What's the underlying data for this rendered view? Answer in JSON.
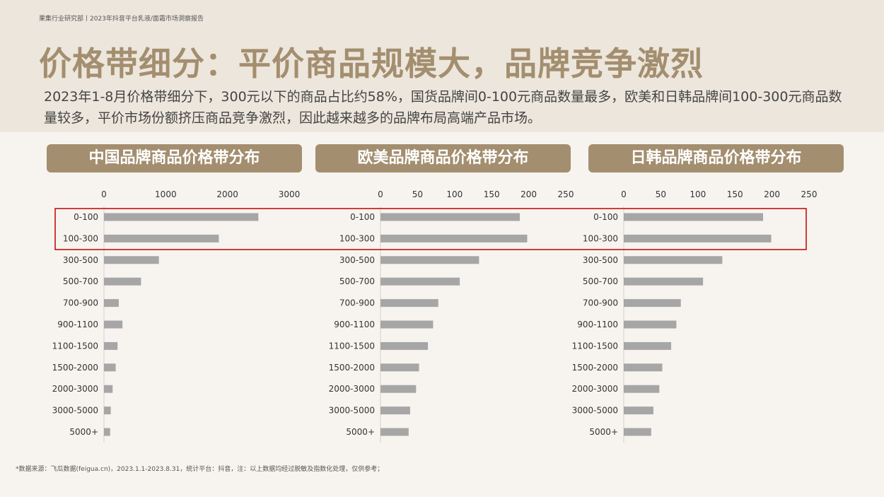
{
  "header": {
    "caption": "果集行业研究部丨2023年抖音平台乳液/面霜市场洞察报告",
    "title": "价格带细分：平价商品规模大，品牌竞争激烈",
    "subtitle": "2023年1-8月价格带细分下，300元以下的商品占比约58%，国货品牌间0-100元商品数量最多，欧美和日韩品牌间100-300元商品数量较多，平价市场份额挤压商品竞争激烈，因此越来越多的品牌布局高端产品市场。"
  },
  "colors": {
    "bar": "#a6a6a6",
    "accent": "#a38e6f",
    "highlight": "#c00000"
  },
  "chart_data": [
    {
      "type": "bar",
      "orientation": "horizontal",
      "title": "中国品牌商品价格带分布",
      "categories": [
        "0-100",
        "100-300",
        "300-500",
        "500-700",
        "700-900",
        "900-1100",
        "1100-1500",
        "1500-2000",
        "2000-3000",
        "3000-5000",
        "5000+"
      ],
      "values": [
        2500,
        1860,
        890,
        600,
        240,
        300,
        220,
        190,
        140,
        110,
        100
      ],
      "xlim": [
        0,
        3000
      ],
      "xticks": [
        0,
        1000,
        2000,
        3000
      ]
    },
    {
      "type": "bar",
      "orientation": "horizontal",
      "title": "欧美品牌商品价格带分布",
      "categories": [
        "0-100",
        "100-300",
        "300-500",
        "500-700",
        "700-900",
        "900-1100",
        "1100-1500",
        "1500-2000",
        "2000-3000",
        "3000-5000",
        "5000+"
      ],
      "values": [
        188,
        198,
        133,
        107,
        78,
        71,
        64,
        52,
        48,
        40,
        38
      ],
      "xlim": [
        0,
        250
      ],
      "xticks": [
        0,
        50,
        100,
        150,
        200,
        250
      ]
    },
    {
      "type": "bar",
      "orientation": "horizontal",
      "title": "日韩品牌商品价格带分布",
      "categories": [
        "0-100",
        "100-300",
        "300-500",
        "500-700",
        "700-900",
        "900-1100",
        "1100-1500",
        "1500-2000",
        "2000-3000",
        "3000-5000",
        "5000+"
      ],
      "values": [
        188,
        199,
        133,
        107,
        77,
        71,
        64,
        52,
        48,
        40,
        37
      ],
      "xlim": [
        0,
        250
      ],
      "xticks": [
        0,
        50,
        100,
        150,
        200,
        250
      ]
    }
  ],
  "footnote": "*数据来源：飞瓜数据(feigua.cn)，2023.1.1-2023.8.31，统计平台：抖音，注：以上数据均经过脱敏及指数化处理，仅供参考；"
}
